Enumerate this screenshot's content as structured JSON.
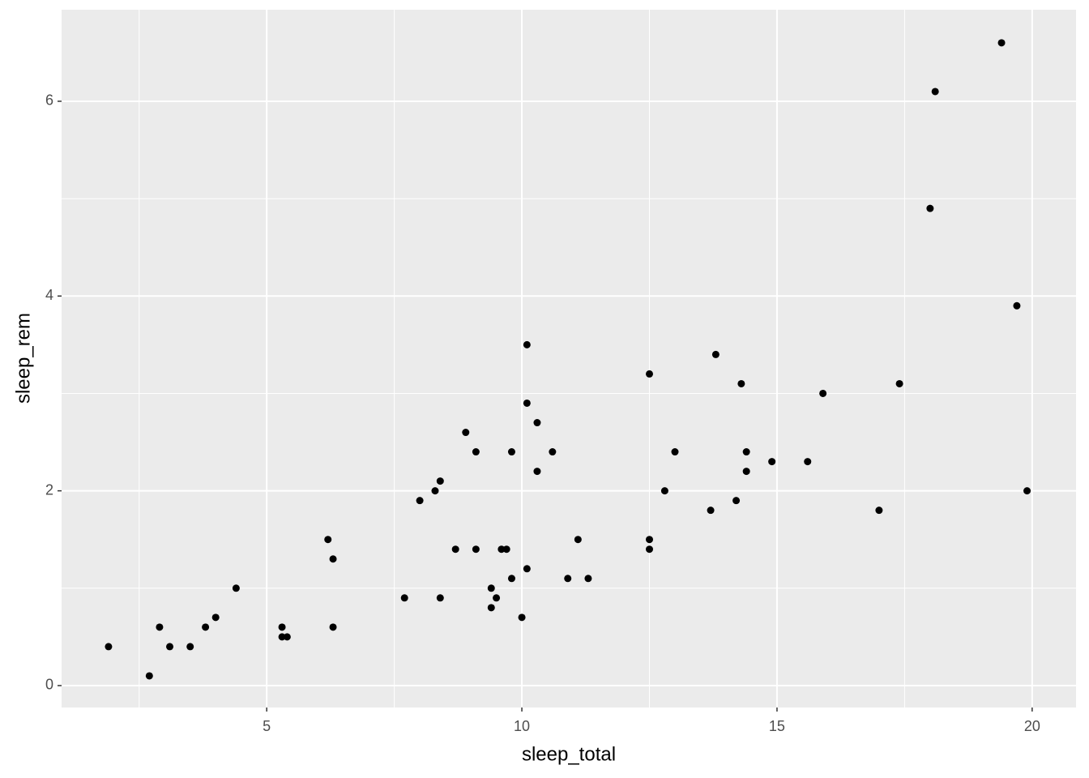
{
  "chart_data": {
    "type": "scatter",
    "x_label": "sleep_total",
    "y_label": "sleep_rem",
    "x": [
      1.9,
      2.7,
      2.9,
      3.1,
      3.5,
      3.8,
      4.0,
      4.4,
      5.3,
      5.3,
      5.4,
      6.2,
      6.3,
      6.3,
      7.7,
      8.0,
      8.3,
      8.4,
      8.4,
      8.7,
      8.9,
      9.1,
      9.1,
      9.4,
      9.4,
      9.5,
      9.6,
      9.7,
      9.8,
      9.8,
      10.0,
      10.1,
      10.1,
      10.1,
      10.3,
      10.3,
      10.6,
      10.9,
      11.1,
      11.3,
      12.5,
      12.5,
      12.5,
      12.8,
      13.0,
      13.7,
      13.8,
      14.2,
      14.3,
      14.4,
      14.4,
      14.9,
      15.6,
      15.9,
      17.0,
      17.4,
      18.0,
      18.1,
      19.4,
      19.7,
      19.9
    ],
    "values": [
      0.4,
      0.1,
      0.6,
      0.4,
      0.4,
      0.6,
      0.7,
      1.0,
      0.6,
      0.5,
      0.5,
      1.5,
      1.3,
      0.6,
      0.9,
      1.9,
      2.0,
      2.1,
      0.9,
      1.4,
      2.6,
      2.4,
      1.4,
      1.0,
      0.8,
      0.9,
      1.4,
      1.4,
      2.4,
      1.1,
      0.7,
      3.5,
      2.9,
      1.2,
      2.7,
      2.2,
      2.4,
      1.1,
      1.5,
      1.1,
      3.2,
      1.5,
      1.4,
      2.0,
      2.4,
      1.8,
      3.4,
      1.9,
      3.1,
      2.4,
      2.2,
      2.3,
      2.3,
      3.0,
      1.8,
      3.1,
      4.9,
      6.1,
      6.6,
      3.9,
      2.0
    ],
    "color": "#000000",
    "xlim": [
      0.98,
      20.86
    ],
    "ylim": [
      -0.225,
      6.94
    ],
    "xticks": [
      5,
      10,
      15,
      20
    ],
    "yticks": [
      0,
      2,
      4,
      6
    ],
    "grid": true
  }
}
